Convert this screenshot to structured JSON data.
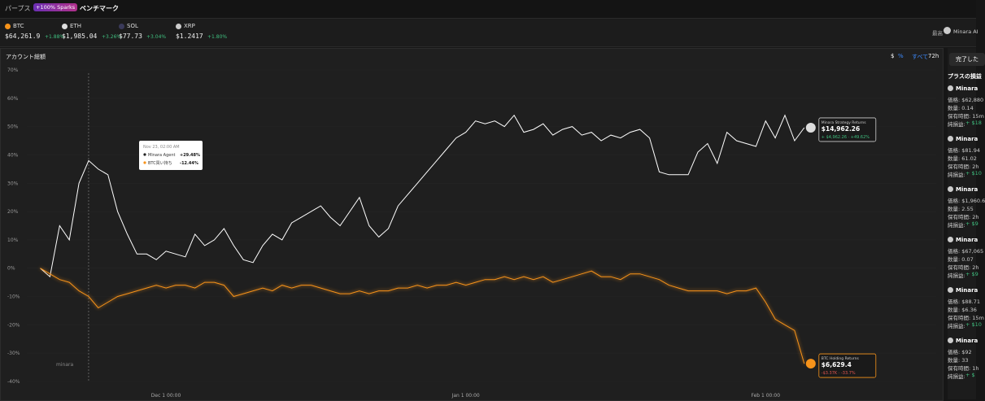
{
  "nav": {
    "tabs": [
      "パープス",
      "ベンチマーク"
    ],
    "badge": "+100% Sparks"
  },
  "tickers": [
    {
      "symbol": "BTC",
      "price": "$64,261.9",
      "change": "+1.88%",
      "icon_color": "#f7931a"
    },
    {
      "symbol": "ETH",
      "price": "$1,985.04",
      "change": "+3.26%",
      "icon_color": "#dddddd"
    },
    {
      "symbol": "SOL",
      "price": "$77.73",
      "change": "+3.04%",
      "icon_color": "#3a3a5a"
    },
    {
      "symbol": "XRP",
      "price": "$1.2417",
      "change": "+1.80%",
      "icon_color": "#cccccc"
    }
  ],
  "header_right": {
    "label": "最高",
    "user": "Minara AI"
  },
  "chart_panel": {
    "title": "アカウント総額",
    "toggles": [
      "$",
      "%",
      "すべて",
      "72h"
    ]
  },
  "chart_data": {
    "type": "line",
    "categories": [
      null,
      null,
      null,
      null,
      null,
      null,
      null,
      null,
      null,
      null,
      null,
      null,
      null,
      "Dec 1 00:00",
      null,
      null,
      null,
      null,
      null,
      null,
      null,
      null,
      null,
      null,
      null,
      null,
      null,
      null,
      null,
      null,
      null,
      null,
      null,
      null,
      null,
      null,
      null,
      null,
      null,
      null,
      null,
      null,
      null,
      null,
      "Jan 1 00:00",
      null,
      null,
      null,
      null,
      null,
      null,
      null,
      null,
      null,
      null,
      null,
      null,
      null,
      null,
      null,
      null,
      null,
      null,
      null,
      null,
      null,
      null,
      null,
      null,
      null,
      null,
      null,
      null,
      null,
      null,
      "Feb 1 00:00",
      null,
      null,
      null,
      null
    ],
    "series": [
      {
        "name": "Minara Agent",
        "color": "#ffffff",
        "values": [
          0,
          -3,
          15,
          10,
          30,
          38,
          35,
          33,
          20,
          12,
          5,
          5,
          3,
          6,
          5,
          4,
          12,
          8,
          10,
          14,
          8,
          3,
          2,
          8,
          12,
          10,
          16,
          18,
          20,
          22,
          18,
          15,
          20,
          25,
          15,
          11,
          14,
          22,
          26,
          30,
          34,
          38,
          42,
          46,
          48,
          52,
          51,
          52,
          50,
          54,
          48,
          49,
          51,
          47,
          49,
          50,
          47,
          48,
          45,
          47,
          46,
          48,
          49,
          46,
          34,
          33,
          33,
          33,
          41,
          44,
          37,
          48,
          45,
          44,
          43,
          52,
          46,
          54,
          45,
          49.62
        ]
      },
      {
        "name": "BTC買い持ち",
        "color": "#f7931a",
        "values": [
          0,
          -2,
          -4,
          -5,
          -8,
          -10,
          -14,
          -12,
          -10,
          -9,
          -8,
          -7,
          -6,
          -7,
          -6,
          -6,
          -7,
          -5,
          -5,
          -6,
          -10,
          -9,
          -8,
          -7,
          -8,
          -6,
          -7,
          -6,
          -6,
          -7,
          -8,
          -9,
          -9,
          -8,
          -9,
          -8,
          -8,
          -7,
          -7,
          -6,
          -7,
          -6,
          -6,
          -5,
          -6,
          -5,
          -4,
          -4,
          -3,
          -4,
          -3,
          -4,
          -3,
          -5,
          -4,
          -3,
          -2,
          -1,
          -3,
          -3,
          -4,
          -2,
          -2,
          -3,
          -4,
          -6,
          -7,
          -8,
          -8,
          -8,
          -8,
          -9,
          -8,
          -8,
          -7,
          -12,
          -18,
          -20,
          -22,
          -33.7
        ]
      }
    ],
    "ylim": [
      -40,
      70
    ],
    "yticks": [
      {
        "value": 70,
        "label": "70%"
      },
      {
        "value": 60,
        "label": "60%"
      },
      {
        "value": 50,
        "label": "50%"
      },
      {
        "value": 40,
        "label": "40%"
      },
      {
        "value": 30,
        "label": "30%"
      },
      {
        "value": 20,
        "label": "20%"
      },
      {
        "value": 10,
        "label": "10%"
      },
      {
        "value": 0,
        "label": "0%"
      },
      {
        "value": -10,
        "label": "-10%"
      },
      {
        "value": -20,
        "label": "-20%"
      },
      {
        "value": -30,
        "label": "-30%"
      },
      {
        "value": -40,
        "label": "-40%"
      }
    ],
    "grid": true,
    "tooltip": {
      "time": "Nov 23, 02:00 AM",
      "values": [
        "+29.48%",
        "-12.44%"
      ]
    },
    "end_labels": [
      {
        "title": "Minara Strategy Returns",
        "amount": "$14,962.26",
        "change": "+ $4,962.26 · +49.62%"
      },
      {
        "title": "BTC Holding Returns",
        "amount": "$6,629.4",
        "change": "-$3.37K · -33.7%"
      }
    ],
    "watermark": "minara"
  },
  "sidebar": {
    "button": "完了した",
    "title": "プラスの損益",
    "positions": [
      {
        "name": "Minara",
        "price": "価格: $62,880",
        "qty": "数量: 0.14",
        "hold": "保有時間: 15m",
        "pnl_label": "純損益:",
        "pnl": "+ $18"
      },
      {
        "name": "Minara",
        "price": "価格: $81.94",
        "qty": "数量: 61.02",
        "hold": "保有時間: 2h",
        "pnl_label": "純損益:",
        "pnl": "+ $10"
      },
      {
        "name": "Minara",
        "price": "価格: $1,960.6",
        "qty": "数量: 2.55",
        "hold": "保有時間: 2h",
        "pnl_label": "純損益:",
        "pnl": "+ $9"
      },
      {
        "name": "Minara",
        "price": "価格: $67,065",
        "qty": "数量: 0.07",
        "hold": "保有時間: 2h",
        "pnl_label": "純損益:",
        "pnl": "+ $9"
      },
      {
        "name": "Minara",
        "price": "価格: $88.71",
        "qty": "数量: $6.36",
        "hold": "保有時間: 15m",
        "pnl_label": "純損益:",
        "pnl": "+ $10"
      },
      {
        "name": "Minara",
        "price": "価格: $92",
        "qty": "数量: 33",
        "hold": "保有時間: 1h",
        "pnl_label": "純損益:",
        "pnl": "+ $"
      }
    ]
  }
}
